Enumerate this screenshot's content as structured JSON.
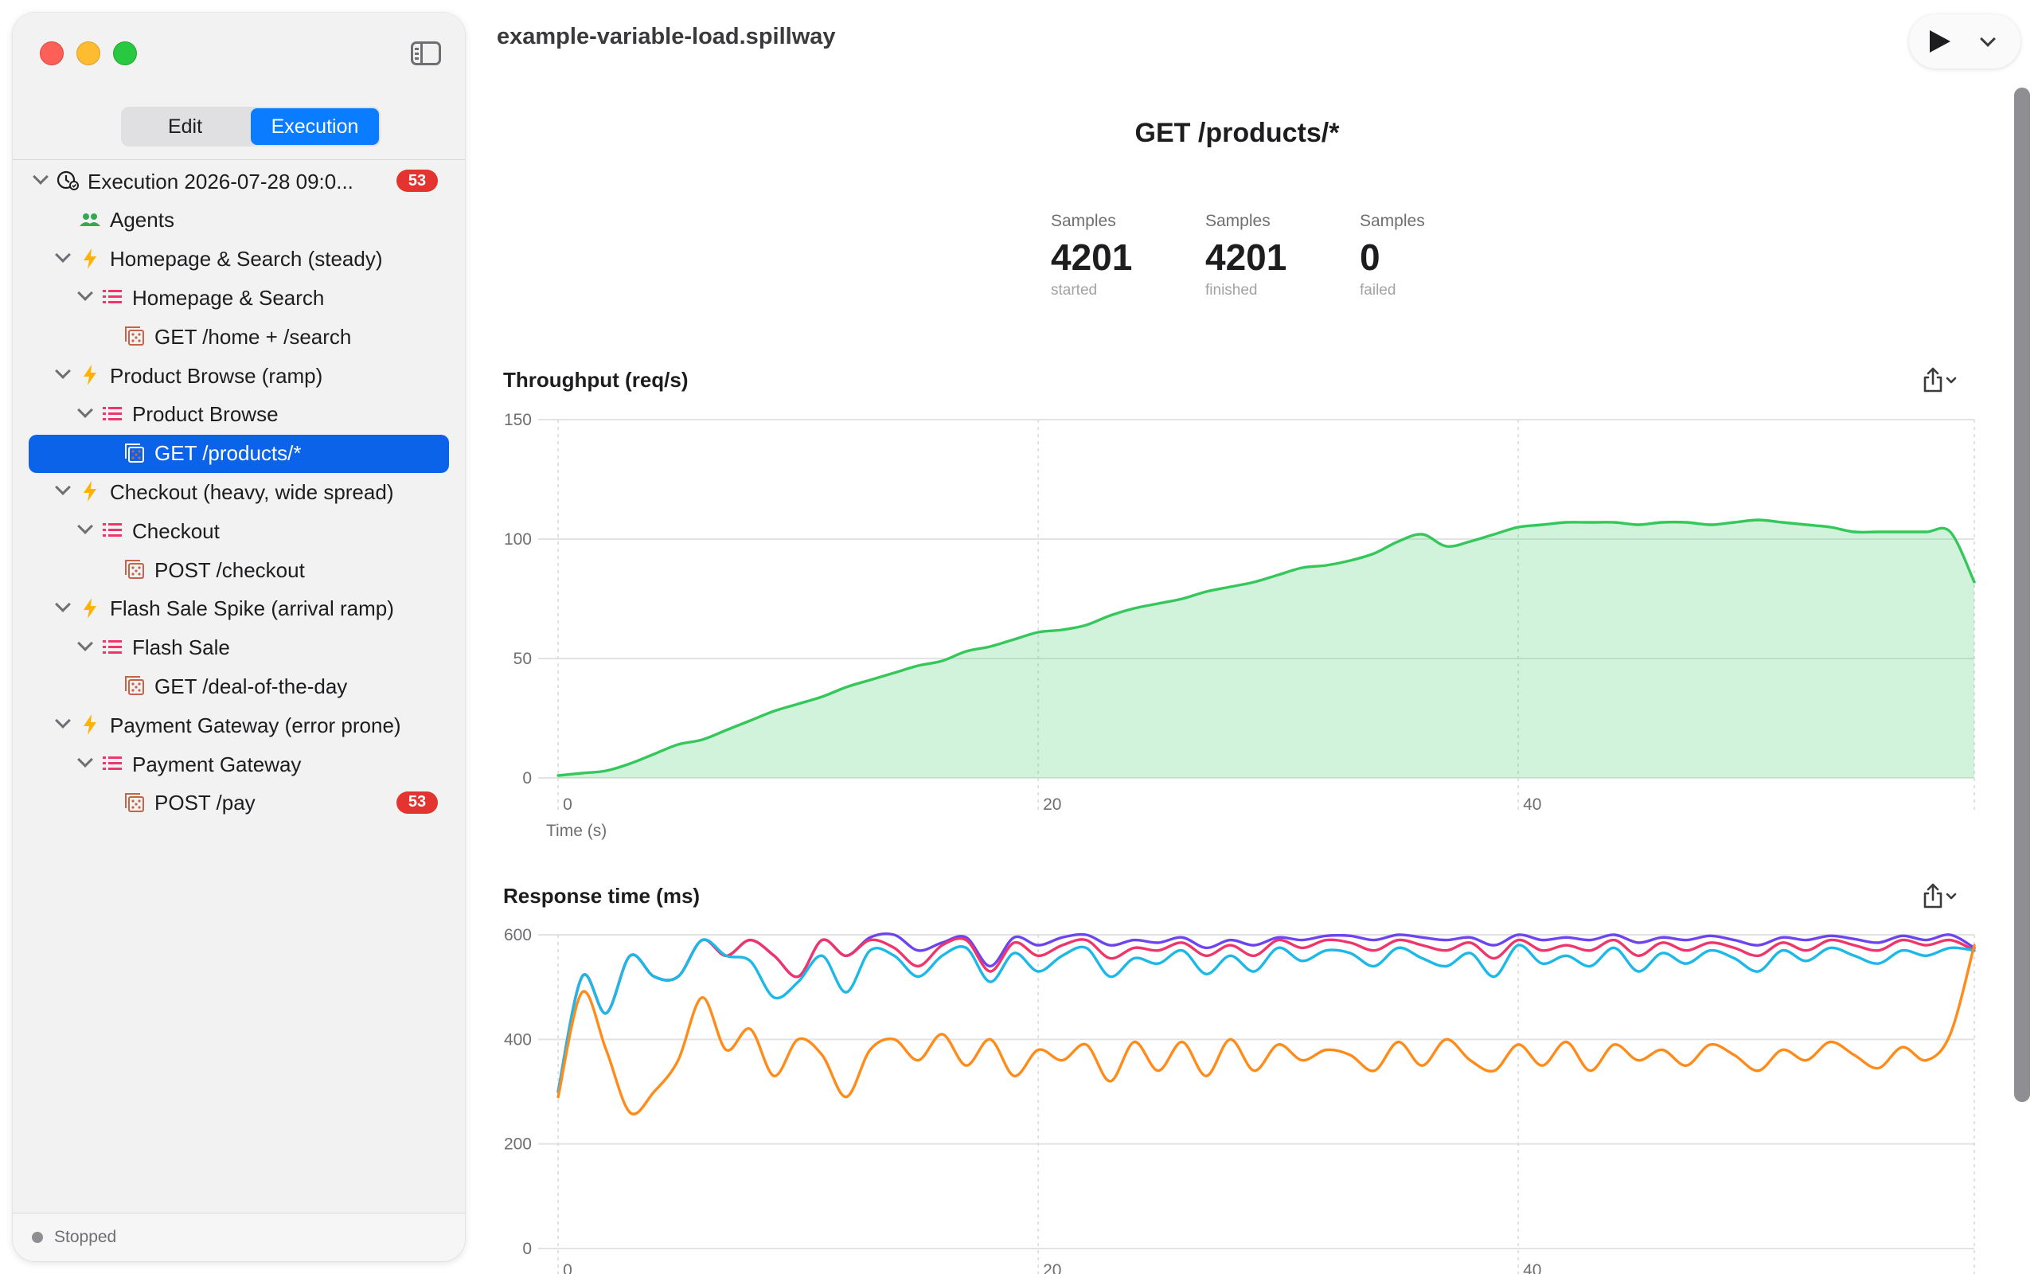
{
  "window": {
    "title": "example-variable-load.spillway"
  },
  "sidebar": {
    "tabs": [
      {
        "label": "Edit",
        "active": false
      },
      {
        "label": "Execution",
        "active": true
      }
    ],
    "tree": [
      {
        "label": "Execution 2026-07-28 09:0...",
        "icon": "execution-clock-icon",
        "badge": "53"
      },
      {
        "label": "Agents",
        "icon": "agents-icon"
      },
      {
        "label": "Homepage & Search (steady)",
        "icon": "lightning-icon"
      },
      {
        "label": "Homepage & Search",
        "icon": "list-icon"
      },
      {
        "label": "GET /home + /search",
        "icon": "request-icon"
      },
      {
        "label": "Product Browse (ramp)",
        "icon": "lightning-icon"
      },
      {
        "label": "Product Browse",
        "icon": "list-icon"
      },
      {
        "label": "GET /products/*",
        "icon": "request-icon",
        "selected": true
      },
      {
        "label": "Checkout (heavy, wide spread)",
        "icon": "lightning-icon"
      },
      {
        "label": "Checkout",
        "icon": "list-icon"
      },
      {
        "label": "POST /checkout",
        "icon": "request-icon"
      },
      {
        "label": "Flash Sale Spike (arrival ramp)",
        "icon": "lightning-icon"
      },
      {
        "label": "Flash Sale",
        "icon": "list-icon"
      },
      {
        "label": "GET /deal-of-the-day",
        "icon": "request-icon"
      },
      {
        "label": "Payment Gateway (error prone)",
        "icon": "lightning-icon"
      },
      {
        "label": "Payment Gateway",
        "icon": "list-icon"
      },
      {
        "label": "POST /pay",
        "icon": "request-icon",
        "badge": "53"
      }
    ],
    "status": "Stopped"
  },
  "main": {
    "heading": "GET /products/*",
    "stats": [
      {
        "label": "Samples",
        "value": "4201",
        "caption": "started"
      },
      {
        "label": "Samples",
        "value": "4201",
        "caption": "finished"
      },
      {
        "label": "Samples",
        "value": "0",
        "caption": "failed"
      }
    ]
  },
  "colors": {
    "accent": "#0a7cff",
    "badge": "#e3342f",
    "throughput": "#34c759",
    "rt_purple": "#6e44f0",
    "rt_red": "#f0356b",
    "rt_cyan": "#1cb8e8",
    "rt_orange": "#ff8c1a"
  },
  "chart_data": [
    {
      "type": "area",
      "title": "Throughput (req/s)",
      "xlabel": "Time (s)",
      "ylabel": "",
      "xlim": [
        -0.5,
        59
      ],
      "ylim": [
        0,
        150
      ],
      "x_ticks": [
        0,
        20,
        40
      ],
      "y_ticks": [
        0,
        50,
        100,
        150
      ],
      "grid": true,
      "series": [
        {
          "color": "#34c759",
          "x": [
            0,
            1,
            2,
            3,
            4,
            5,
            6,
            7,
            8,
            9,
            10,
            11,
            12,
            13,
            14,
            15,
            16,
            17,
            18,
            19,
            20,
            21,
            22,
            23,
            24,
            25,
            26,
            27,
            28,
            29,
            30,
            31,
            32,
            33,
            34,
            35,
            36,
            37,
            38,
            39,
            40,
            41,
            42,
            43,
            44,
            45,
            46,
            47,
            48,
            49,
            50,
            51,
            52,
            53,
            54,
            55,
            56,
            57,
            58,
            59
          ],
          "y": [
            1,
            2,
            3,
            6,
            10,
            14,
            16,
            20,
            24,
            28,
            31,
            34,
            38,
            41,
            44,
            47,
            49,
            53,
            55,
            58,
            61,
            62,
            64,
            68,
            71,
            73,
            75,
            78,
            80,
            82,
            85,
            88,
            89,
            91,
            94,
            99,
            102,
            97,
            99,
            102,
            105,
            106,
            107,
            107,
            107,
            106,
            107,
            107,
            106,
            107,
            108,
            107,
            106,
            105,
            103,
            103,
            103,
            103,
            103,
            82
          ]
        }
      ]
    },
    {
      "type": "line",
      "title": "Response time (ms)",
      "xlim": [
        -0.5,
        59
      ],
      "ylim": [
        0,
        600
      ],
      "x_ticks": [
        0,
        20,
        40
      ],
      "y_ticks": [
        0,
        200,
        400,
        600
      ],
      "grid": true,
      "series": [
        {
          "color": "#6e44f0",
          "x": [
            0,
            1,
            2,
            3,
            4,
            5,
            6,
            7,
            8,
            9,
            10,
            11,
            12,
            13,
            14,
            15,
            16,
            17,
            18,
            19,
            20,
            21,
            22,
            23,
            24,
            25,
            26,
            27,
            28,
            29,
            30,
            31,
            32,
            33,
            34,
            35,
            36,
            37,
            38,
            39,
            40,
            41,
            42,
            43,
            44,
            45,
            46,
            47,
            48,
            49,
            50,
            51,
            52,
            53,
            54,
            55,
            56,
            57,
            58,
            59
          ],
          "y": [
            300,
            520,
            450,
            560,
            520,
            520,
            590,
            560,
            590,
            560,
            520,
            590,
            560,
            595,
            600,
            570,
            585,
            595,
            540,
            595,
            580,
            595,
            600,
            580,
            590,
            585,
            595,
            575,
            590,
            580,
            595,
            590,
            598,
            598,
            590,
            600,
            595,
            590,
            595,
            580,
            600,
            590,
            595,
            590,
            600,
            585,
            595,
            590,
            598,
            590,
            580,
            595,
            590,
            598,
            592,
            585,
            598,
            590,
            600,
            575
          ]
        },
        {
          "color": "#f0356b",
          "x": [
            0,
            1,
            2,
            3,
            4,
            5,
            6,
            7,
            8,
            9,
            10,
            11,
            12,
            13,
            14,
            15,
            16,
            17,
            18,
            19,
            20,
            21,
            22,
            23,
            24,
            25,
            26,
            27,
            28,
            29,
            30,
            31,
            32,
            33,
            34,
            35,
            36,
            37,
            38,
            39,
            40,
            41,
            42,
            43,
            44,
            45,
            46,
            47,
            48,
            49,
            50,
            51,
            52,
            53,
            54,
            55,
            56,
            57,
            58,
            59
          ],
          "y": [
            300,
            520,
            450,
            560,
            520,
            520,
            590,
            560,
            590,
            560,
            520,
            590,
            560,
            590,
            575,
            540,
            580,
            590,
            530,
            585,
            560,
            580,
            590,
            555,
            575,
            570,
            585,
            560,
            580,
            560,
            590,
            575,
            590,
            585,
            570,
            590,
            580,
            570,
            585,
            555,
            590,
            570,
            580,
            570,
            590,
            560,
            585,
            570,
            585,
            575,
            560,
            585,
            570,
            590,
            580,
            570,
            590,
            580,
            590,
            570
          ]
        },
        {
          "color": "#1cb8e8",
          "x": [
            0,
            1,
            2,
            3,
            4,
            5,
            6,
            7,
            8,
            9,
            10,
            11,
            12,
            13,
            14,
            15,
            16,
            17,
            18,
            19,
            20,
            21,
            22,
            23,
            24,
            25,
            26,
            27,
            28,
            29,
            30,
            31,
            32,
            33,
            34,
            35,
            36,
            37,
            38,
            39,
            40,
            41,
            42,
            43,
            44,
            45,
            46,
            47,
            48,
            49,
            50,
            51,
            52,
            53,
            54,
            55,
            56,
            57,
            58,
            59
          ],
          "y": [
            300,
            520,
            450,
            560,
            520,
            520,
            590,
            560,
            550,
            480,
            510,
            560,
            490,
            570,
            560,
            520,
            560,
            575,
            510,
            565,
            530,
            560,
            575,
            520,
            555,
            545,
            570,
            525,
            560,
            530,
            575,
            550,
            570,
            565,
            540,
            575,
            555,
            540,
            565,
            520,
            580,
            545,
            560,
            540,
            575,
            530,
            565,
            545,
            570,
            555,
            530,
            570,
            550,
            575,
            560,
            545,
            570,
            560,
            575,
            570
          ]
        },
        {
          "color": "#ff8c1a",
          "x": [
            0,
            1,
            2,
            3,
            4,
            5,
            6,
            7,
            8,
            9,
            10,
            11,
            12,
            13,
            14,
            15,
            16,
            17,
            18,
            19,
            20,
            21,
            22,
            23,
            24,
            25,
            26,
            27,
            28,
            29,
            30,
            31,
            32,
            33,
            34,
            35,
            36,
            37,
            38,
            39,
            40,
            41,
            42,
            43,
            44,
            45,
            46,
            47,
            48,
            49,
            50,
            51,
            52,
            53,
            54,
            55,
            56,
            57,
            58,
            59
          ],
          "y": [
            290,
            490,
            380,
            260,
            300,
            360,
            480,
            380,
            420,
            330,
            400,
            370,
            290,
            380,
            400,
            360,
            410,
            350,
            400,
            330,
            380,
            360,
            390,
            320,
            395,
            340,
            395,
            330,
            400,
            340,
            390,
            360,
            380,
            370,
            340,
            395,
            350,
            400,
            360,
            340,
            390,
            350,
            395,
            340,
            390,
            360,
            380,
            350,
            390,
            370,
            340,
            380,
            360,
            395,
            370,
            345,
            385,
            360,
            410,
            580
          ]
        }
      ]
    }
  ]
}
